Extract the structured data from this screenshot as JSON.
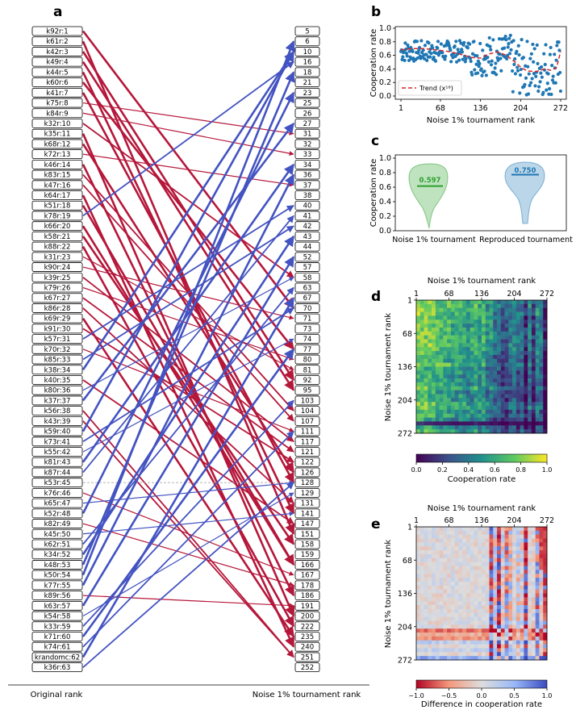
{
  "panel_labels": {
    "a": "a",
    "b": "b",
    "c": "c",
    "d": "d",
    "e": "e"
  },
  "chart_data": [
    {
      "id": "a",
      "type": "bump",
      "left_axis_label": "Original rank",
      "right_axis_label": "Noise 1% tournament rank",
      "left_labels": [
        "k92r:1",
        "k61r:2",
        "k42r:3",
        "k49r:4",
        "k44r:5",
        "k60r:6",
        "k41r:7",
        "k75r:8",
        "k84r:9",
        "k32r:10",
        "k35r:11",
        "k68r:12",
        "k72r:13",
        "k46r:14",
        "k83r:15",
        "k47r:16",
        "k64r:17",
        "k51r:18",
        "k78r:19",
        "k66r:20",
        "k58r:21",
        "k88r:22",
        "k31r:23",
        "k90r:24",
        "k39r:25",
        "k79r:26",
        "k67r:27",
        "k86r:28",
        "k69r:29",
        "k91r:30",
        "k57r:31",
        "k70r:32",
        "k85r:33",
        "k38r:34",
        "k40r:35",
        "k80r:36",
        "k37r:37",
        "k56r:38",
        "k43r:39",
        "k59r:40",
        "k73r:41",
        "k55r:42",
        "k81r:43",
        "k87r:44",
        "k53r:45",
        "k76r:46",
        "k65r:47",
        "k52r:48",
        "k82r:49",
        "k45r:50",
        "k62r:51",
        "k34r:52",
        "k48r:53",
        "k50r:54",
        "k77r:55",
        "k89r:56",
        "k63r:57",
        "k54r:58",
        "k33r:59",
        "k71r:60",
        "k74r:61",
        "krandomc:62",
        "k36r:63"
      ],
      "right_labels": [
        "5",
        "6",
        "10",
        "16",
        "18",
        "21",
        "23",
        "25",
        "26",
        "27",
        "31",
        "32",
        "33",
        "34",
        "36",
        "37",
        "38",
        "40",
        "41",
        "42",
        "43",
        "44",
        "52",
        "57",
        "58",
        "63",
        "67",
        "70",
        "71",
        "73",
        "74",
        "77",
        "80",
        "81",
        "92",
        "95",
        "103",
        "104",
        "107",
        "111",
        "117",
        "121",
        "122",
        "126",
        "128",
        "129",
        "131",
        "141",
        "147",
        "151",
        "158",
        "159",
        "166",
        "167",
        "178",
        "186",
        "191",
        "200",
        "222",
        "235",
        "240",
        "251",
        "252"
      ],
      "mapping": [
        27,
        49,
        34,
        35,
        47,
        31,
        44,
        10,
        12,
        24,
        57,
        43,
        15,
        55,
        37,
        38,
        60,
        52,
        3,
        52,
        50,
        58,
        33,
        28,
        40,
        32,
        41,
        46,
        59,
        42,
        17,
        39,
        19,
        2,
        48,
        24,
        9,
        61,
        61,
        2,
        27,
        30,
        13,
        18,
        44,
        53,
        44,
        6,
        54,
        47,
        25,
        20,
        4,
        1,
        14,
        56,
        22,
        45,
        36,
        31,
        39,
        26,
        44
      ],
      "arrow_ranks": [
        5,
        6,
        10,
        16,
        18,
        21,
        23,
        25,
        26,
        27,
        31,
        32,
        33,
        34,
        36,
        37,
        38,
        40,
        41,
        42,
        43,
        44,
        52,
        57,
        58,
        63,
        67,
        70,
        71,
        73,
        74,
        77,
        80,
        81,
        92,
        95,
        103,
        104,
        107,
        111,
        117,
        121,
        122,
        126,
        128,
        129,
        131,
        141,
        147,
        151,
        158,
        159,
        166,
        167,
        178,
        186,
        191,
        200,
        222,
        235,
        240,
        251,
        252
      ]
    },
    {
      "id": "b",
      "type": "scatter",
      "ylabel": "Cooperation rate",
      "xlabel": "Noise 1% tournament rank",
      "xticks": [
        1,
        68,
        136,
        204,
        272
      ],
      "yticks": [
        "0.0",
        "0.2",
        "0.4",
        "0.6",
        "0.8",
        "1.0"
      ],
      "xlim": [
        1,
        272
      ],
      "ylim": [
        0,
        1
      ],
      "legend": "Trend (x¹⁶)",
      "trend_points": [
        [
          1,
          0.68
        ],
        [
          20,
          0.7
        ],
        [
          40,
          0.7
        ],
        [
          60,
          0.68
        ],
        [
          80,
          0.66
        ],
        [
          100,
          0.62
        ],
        [
          120,
          0.57
        ],
        [
          136,
          0.56
        ],
        [
          150,
          0.62
        ],
        [
          165,
          0.65
        ],
        [
          180,
          0.6
        ],
        [
          195,
          0.5
        ],
        [
          205,
          0.42
        ],
        [
          215,
          0.37
        ],
        [
          230,
          0.36
        ],
        [
          245,
          0.4
        ],
        [
          255,
          0.38
        ],
        [
          265,
          0.42
        ],
        [
          272,
          0.66
        ]
      ],
      "series": [
        {
          "name": "Cooperation rate",
          "color": "#1f77b4"
        }
      ]
    },
    {
      "id": "c",
      "type": "violin",
      "ylabel": "Cooperation rate",
      "yticks": [
        "0.0",
        "0.2",
        "0.4",
        "0.6",
        "0.8",
        "1.0"
      ],
      "categories": [
        "Noise 1% tournament",
        "Reproduced tournament"
      ],
      "medians": [
        0.597,
        0.75
      ],
      "median_labels": [
        "0.597",
        "0.750"
      ],
      "colors": [
        "#2ca02c",
        "#1f77b4"
      ]
    },
    {
      "id": "d",
      "type": "heatmap",
      "title": "Noise 1% tournament rank",
      "ylabel": "Noise 1% tournament rank",
      "xticks": [
        "1",
        "68",
        "136",
        "204",
        "272"
      ],
      "yticks": [
        "1",
        "68",
        "136",
        "204",
        "272"
      ],
      "colorbar_label": "Cooperation rate",
      "colorbar_ticks": [
        "0.0",
        "0.2",
        "0.4",
        "0.6",
        "0.8",
        "1.0"
      ]
    },
    {
      "id": "e",
      "type": "heatmap",
      "title": "Noise 1% tournament rank",
      "ylabel": "Noise 1% tournament rank",
      "xticks": [
        "1",
        "68",
        "136",
        "204",
        "272"
      ],
      "yticks": [
        "1",
        "68",
        "136",
        "204",
        "272"
      ],
      "colorbar_label": "Difference in cooperation rate",
      "colorbar_ticks": [
        "−1.0",
        "−0.5",
        "0.0",
        "0.5",
        "1.0"
      ]
    }
  ]
}
